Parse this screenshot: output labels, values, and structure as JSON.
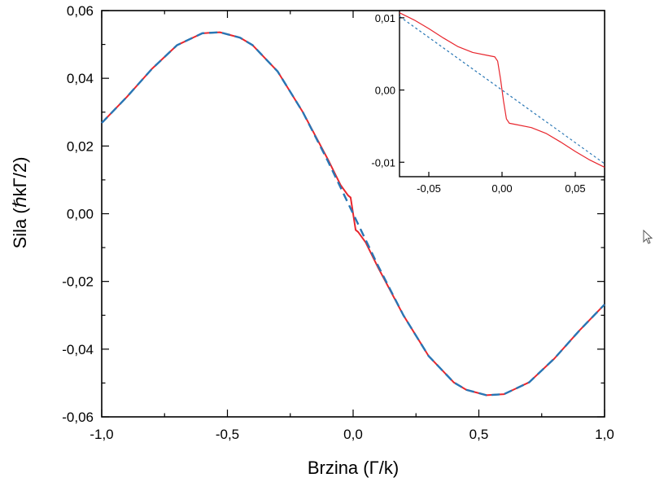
{
  "chart_data": [
    {
      "type": "line",
      "title": "",
      "xlabel": "Brzina (Γ/k)",
      "ylabel": "Sila (ℏkΓ/2)",
      "xlim": [
        -1.0,
        1.0
      ],
      "ylim": [
        -0.06,
        0.06
      ],
      "x_ticks": [
        -1.0,
        -0.5,
        0.0,
        0.5,
        1.0
      ],
      "x_tick_labels": [
        "-1,0",
        "-0,5",
        "0,0",
        "0,5",
        "1,0"
      ],
      "y_ticks": [
        -0.06,
        -0.04,
        -0.02,
        0.0,
        0.02,
        0.04,
        0.06
      ],
      "y_tick_labels": [
        "-0,06",
        "-0,04",
        "-0,02",
        "0,00",
        "0,02",
        "0,04",
        "0,06"
      ],
      "grid": false,
      "series": [
        {
          "style": "solid",
          "color": "#e8262d",
          "x": [
            -1.0,
            -0.9,
            -0.8,
            -0.7,
            -0.6,
            -0.53,
            -0.45,
            -0.4,
            -0.3,
            -0.2,
            -0.1,
            -0.05,
            -0.02,
            -0.01,
            0.0,
            0.01,
            0.02,
            0.05,
            0.1,
            0.2,
            0.3,
            0.4,
            0.45,
            0.53,
            0.6,
            0.7,
            0.8,
            0.9,
            1.0
          ],
          "values": [
            0.0268,
            0.0345,
            0.0428,
            0.0498,
            0.0533,
            0.0536,
            0.052,
            0.0498,
            0.042,
            0.03,
            0.016,
            0.0085,
            0.0054,
            0.0048,
            0.0,
            -0.0048,
            -0.0054,
            -0.0085,
            -0.016,
            -0.03,
            -0.042,
            -0.0498,
            -0.052,
            -0.0536,
            -0.0533,
            -0.0498,
            -0.0428,
            -0.0345,
            -0.0268
          ]
        },
        {
          "style": "dashed",
          "color": "#2876b4",
          "x": [
            -1.0,
            -0.9,
            -0.8,
            -0.7,
            -0.6,
            -0.53,
            -0.45,
            -0.4,
            -0.3,
            -0.2,
            -0.1,
            0.0,
            0.1,
            0.2,
            0.3,
            0.4,
            0.45,
            0.53,
            0.6,
            0.7,
            0.8,
            0.9,
            1.0
          ],
          "values": [
            0.0268,
            0.0345,
            0.0428,
            0.0498,
            0.0533,
            0.0536,
            0.052,
            0.0498,
            0.042,
            0.03,
            0.0155,
            0.0,
            -0.0155,
            -0.03,
            -0.042,
            -0.0498,
            -0.052,
            -0.0536,
            -0.0533,
            -0.0498,
            -0.0428,
            -0.0345,
            -0.0268
          ]
        }
      ]
    },
    {
      "type": "line",
      "title": "",
      "xlabel": "",
      "ylabel": "",
      "xlim": [
        -0.07,
        0.07
      ],
      "ylim": [
        -0.012,
        0.011
      ],
      "x_ticks": [
        -0.05,
        0.0,
        0.05
      ],
      "x_tick_labels": [
        "-0,05",
        "0,00",
        "0,05"
      ],
      "y_ticks": [
        -0.01,
        0.0,
        0.01
      ],
      "y_tick_labels": [
        "-0,01",
        "0,00",
        "0,01"
      ],
      "grid": false,
      "series": [
        {
          "style": "solid",
          "color": "#e8262d",
          "x": [
            -0.07,
            -0.06,
            -0.05,
            -0.04,
            -0.03,
            -0.02,
            -0.01,
            -0.005,
            -0.003,
            -0.001,
            0.0,
            0.001,
            0.003,
            0.005,
            0.01,
            0.02,
            0.03,
            0.04,
            0.05,
            0.06,
            0.07
          ],
          "values": [
            0.0107,
            0.0097,
            0.0085,
            0.0072,
            0.006,
            0.0052,
            0.0048,
            0.0046,
            0.004,
            0.0015,
            0.0,
            -0.0015,
            -0.004,
            -0.0046,
            -0.0048,
            -0.0052,
            -0.006,
            -0.0072,
            -0.0085,
            -0.0097,
            -0.0107
          ]
        },
        {
          "style": "dashed",
          "color": "#2876b4",
          "x": [
            -0.07,
            0.07
          ],
          "values": [
            0.0102,
            -0.0102
          ]
        }
      ]
    }
  ]
}
